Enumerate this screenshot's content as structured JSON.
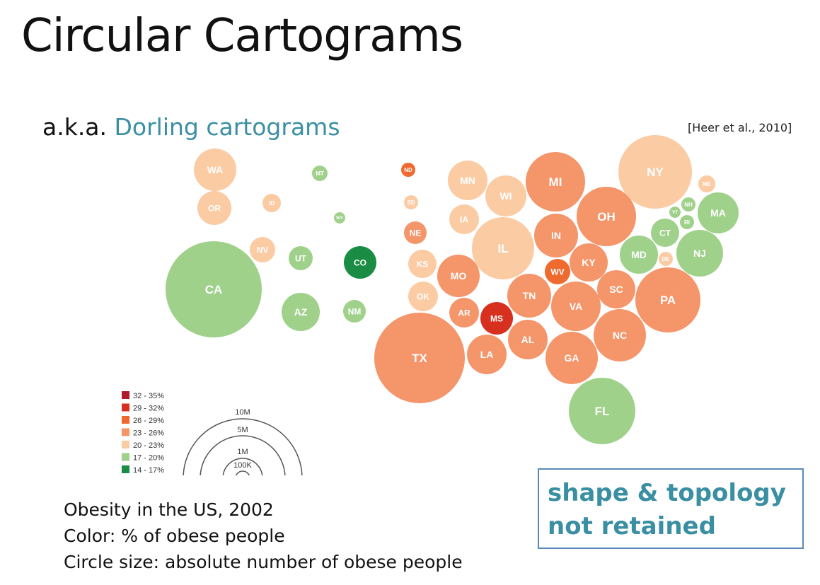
{
  "title": "Circular Cartograms",
  "subtitle_prefix": "a.k.a. ",
  "subtitle_accent": "Dorling cartograms",
  "citation": "[Heer et al., 2010]",
  "description": [
    "Obesity in the US, 2002",
    "Color: % of obese people",
    "Circle size: absolute number of obese people"
  ],
  "callout": [
    "shape & topology",
    "not retained"
  ],
  "colors": {
    "32-35": "#b2182b",
    "29-32": "#d7301f",
    "26-29": "#ef6a2f",
    "23-26": "#f4956a",
    "20-23": "#fbcba3",
    "17-20": "#9fd18b",
    "14-17": "#1a8c43"
  },
  "legend": {
    "color_bins": [
      {
        "label": "32 - 35%",
        "bin": "32-35"
      },
      {
        "label": "29 - 32%",
        "bin": "29-32"
      },
      {
        "label": "26 - 29%",
        "bin": "26-29"
      },
      {
        "label": "23 - 26%",
        "bin": "23-26"
      },
      {
        "label": "20 - 23%",
        "bin": "20-23"
      },
      {
        "label": "17 - 20%",
        "bin": "17-20"
      },
      {
        "label": "14 - 17%",
        "bin": "14-17"
      }
    ],
    "size_labels": [
      "10M",
      "5M",
      "1M",
      "100K"
    ]
  },
  "states": [
    {
      "abbr": "WA",
      "bin": "20-23"
    },
    {
      "abbr": "OR",
      "bin": "20-23"
    },
    {
      "abbr": "CA",
      "bin": "17-20"
    },
    {
      "abbr": "NV",
      "bin": "20-23"
    },
    {
      "abbr": "ID",
      "bin": "20-23"
    },
    {
      "abbr": "MT",
      "bin": "17-20"
    },
    {
      "abbr": "WY",
      "bin": "17-20"
    },
    {
      "abbr": "UT",
      "bin": "17-20"
    },
    {
      "abbr": "AZ",
      "bin": "17-20"
    },
    {
      "abbr": "CO",
      "bin": "14-17"
    },
    {
      "abbr": "NM",
      "bin": "17-20"
    },
    {
      "abbr": "ND",
      "bin": "26-29"
    },
    {
      "abbr": "SD",
      "bin": "20-23"
    },
    {
      "abbr": "NE",
      "bin": "23-26"
    },
    {
      "abbr": "KS",
      "bin": "20-23"
    },
    {
      "abbr": "OK",
      "bin": "20-23"
    },
    {
      "abbr": "TX",
      "bin": "23-26"
    },
    {
      "abbr": "MN",
      "bin": "20-23"
    },
    {
      "abbr": "IA",
      "bin": "20-23"
    },
    {
      "abbr": "MO",
      "bin": "23-26"
    },
    {
      "abbr": "AR",
      "bin": "23-26"
    },
    {
      "abbr": "LA",
      "bin": "23-26"
    },
    {
      "abbr": "WI",
      "bin": "20-23"
    },
    {
      "abbr": "IL",
      "bin": "20-23"
    },
    {
      "abbr": "MS",
      "bin": "29-32"
    },
    {
      "abbr": "MI",
      "bin": "23-26"
    },
    {
      "abbr": "IN",
      "bin": "23-26"
    },
    {
      "abbr": "KY",
      "bin": "23-26"
    },
    {
      "abbr": "TN",
      "bin": "23-26"
    },
    {
      "abbr": "AL",
      "bin": "23-26"
    },
    {
      "abbr": "WV",
      "bin": "26-29"
    },
    {
      "abbr": "OH",
      "bin": "23-26"
    },
    {
      "abbr": "VA",
      "bin": "23-26"
    },
    {
      "abbr": "GA",
      "bin": "23-26"
    },
    {
      "abbr": "FL",
      "bin": "17-20"
    },
    {
      "abbr": "NC",
      "bin": "23-26"
    },
    {
      "abbr": "SC",
      "bin": "23-26"
    },
    {
      "abbr": "PA",
      "bin": "23-26"
    },
    {
      "abbr": "NY",
      "bin": "20-23"
    },
    {
      "abbr": "MD",
      "bin": "17-20"
    },
    {
      "abbr": "DE",
      "bin": "20-23"
    },
    {
      "abbr": "NJ",
      "bin": "17-20"
    },
    {
      "abbr": "ME",
      "bin": "20-23"
    },
    {
      "abbr": "VT",
      "bin": "17-20"
    },
    {
      "abbr": "NH",
      "bin": "17-20"
    },
    {
      "abbr": "MA",
      "bin": "17-20"
    },
    {
      "abbr": "CT",
      "bin": "17-20"
    },
    {
      "abbr": "RI",
      "bin": "17-20"
    }
  ]
}
